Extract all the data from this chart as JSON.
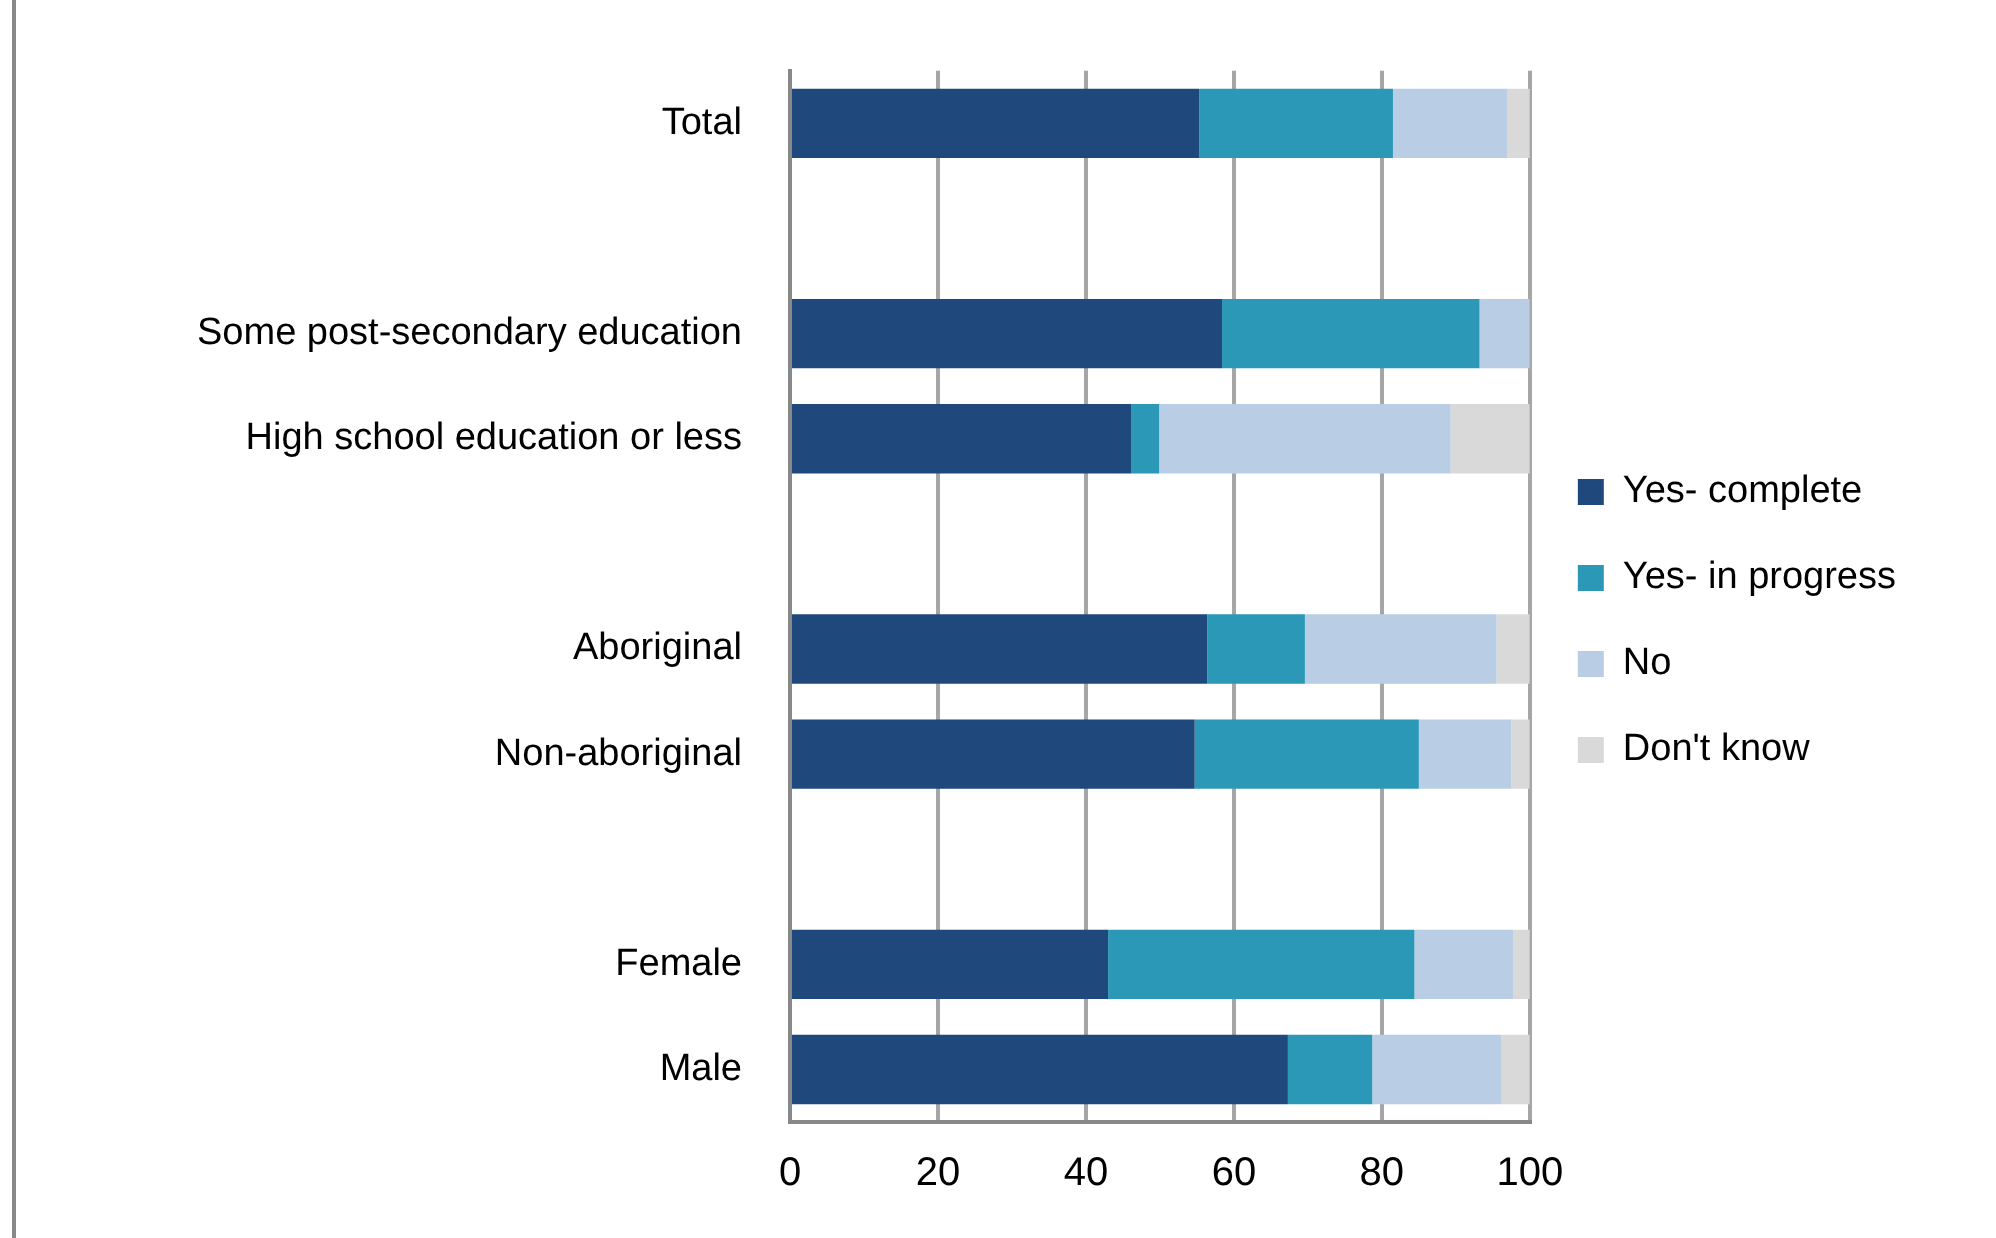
{
  "chart_data": {
    "type": "bar",
    "orientation": "horizontal",
    "stacked": true,
    "categories": [
      "Total",
      null,
      "Some post-secondary education",
      "High school education or less",
      null,
      "Aboriginal",
      "Non-aboriginal",
      null,
      "Female",
      "Male"
    ],
    "series": [
      {
        "name": "Yes- complete",
        "color": "#1f497d",
        "values": [
          55.3,
          null,
          58.4,
          46.1,
          null,
          56.4,
          54.7,
          null,
          43.0,
          67.3
        ]
      },
      {
        "name": "Yes- in progress",
        "color": "#2b98b8",
        "values": [
          26.2,
          null,
          34.8,
          3.8,
          null,
          13.2,
          30.3,
          null,
          41.4,
          11.4
        ]
      },
      {
        "name": "No",
        "color": "#b9cde5",
        "values": [
          15.5,
          null,
          6.8,
          39.4,
          null,
          25.9,
          12.5,
          null,
          13.4,
          17.4
        ]
      },
      {
        "name": "Don't know",
        "color": "#d9d9d9",
        "values": [
          3.0,
          null,
          0,
          10.7,
          null,
          4.5,
          2.5,
          null,
          2.2,
          3.9
        ]
      }
    ],
    "xlim": [
      0,
      100
    ],
    "xticks": [
      0,
      20,
      40,
      60,
      80,
      100
    ],
    "grid": "x",
    "legend": "right"
  }
}
